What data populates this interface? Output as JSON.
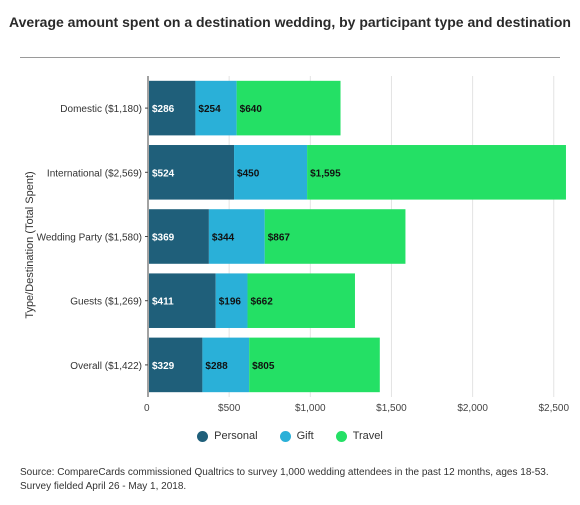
{
  "chart_data": {
    "type": "bar",
    "orientation": "horizontal",
    "stacked": true,
    "title": "Average amount spent on a destination wedding, by participant type and destination",
    "xlabel": "",
    "ylabel": "Type/Destination (Total Spent)",
    "categories": [
      "Domestic ($1,180)",
      "International ($2,569)",
      "Wedding Party ($1,580)",
      "Guests ($1,269)",
      "Overall ($1,422)"
    ],
    "series": [
      {
        "name": "Personal",
        "color": "#1f5f7a",
        "values": [
          286,
          524,
          369,
          411,
          329
        ],
        "labels": [
          "$286",
          "$524",
          "$369",
          "$411",
          "$329"
        ]
      },
      {
        "name": "Gift",
        "color": "#2ab0d8",
        "values": [
          254,
          450,
          344,
          196,
          288
        ],
        "labels": [
          "$254",
          "$450",
          "$344",
          "$196",
          "$288"
        ]
      },
      {
        "name": "Travel",
        "color": "#24e065",
        "values": [
          640,
          1595,
          867,
          662,
          805
        ],
        "labels": [
          "$640",
          "$1,595",
          "$867",
          "$662",
          "$805"
        ]
      }
    ],
    "xlim": [
      0,
      2600
    ],
    "xticks": [
      0,
      500,
      1000,
      1500,
      2000,
      2500
    ],
    "xtick_labels": [
      "0",
      "$500",
      "$1,000",
      "$1,500",
      "$2,000",
      "$2,500"
    ],
    "grid": true,
    "legend_position": "bottom"
  },
  "source_note": "Source: CompareCards commissioned Qualtrics to survey 1,000 wedding attendees in the past 12 months, ages 18-53. Survey fielded April 26 - May 1, 2018."
}
